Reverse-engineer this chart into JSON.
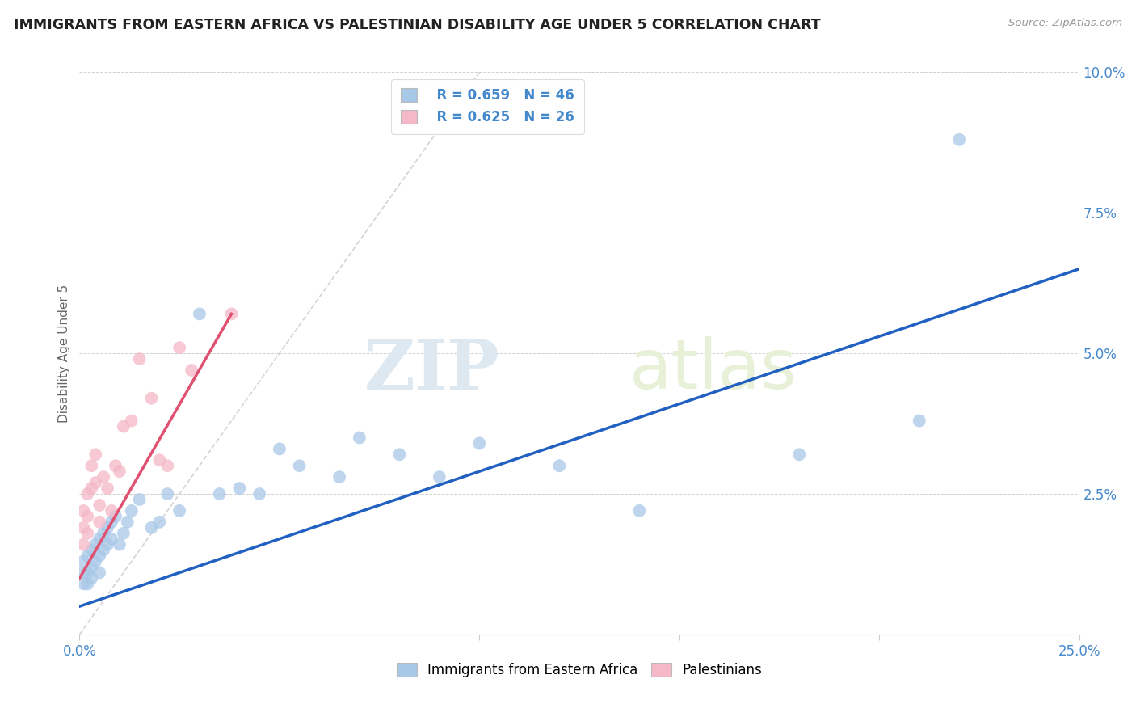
{
  "title": "IMMIGRANTS FROM EASTERN AFRICA VS PALESTINIAN DISABILITY AGE UNDER 5 CORRELATION CHART",
  "source": "Source: ZipAtlas.com",
  "ylabel": "Disability Age Under 5",
  "xlim": [
    0,
    0.25
  ],
  "ylim": [
    0,
    0.1
  ],
  "xticks": [
    0.0,
    0.05,
    0.1,
    0.15,
    0.2,
    0.25
  ],
  "yticks": [
    0.0,
    0.025,
    0.05,
    0.075,
    0.1
  ],
  "legend_r_blue": "0.659",
  "legend_n_blue": "46",
  "legend_r_pink": "0.625",
  "legend_n_pink": "26",
  "blue_color": "#a8c8e8",
  "pink_color": "#f4b8c8",
  "line_blue": "#2060c0",
  "line_pink": "#e05070",
  "diag_color": "#c8c8d0",
  "watermark_zip": "ZIP",
  "watermark_atlas": "atlas",
  "blue_scatter_x": [
    0.001,
    0.001,
    0.001,
    0.002,
    0.002,
    0.002,
    0.003,
    0.003,
    0.003,
    0.004,
    0.004,
    0.005,
    0.005,
    0.005,
    0.006,
    0.006,
    0.007,
    0.007,
    0.008,
    0.008,
    0.009,
    0.01,
    0.011,
    0.012,
    0.013,
    0.015,
    0.018,
    0.02,
    0.022,
    0.025,
    0.03,
    0.035,
    0.04,
    0.045,
    0.05,
    0.055,
    0.065,
    0.07,
    0.08,
    0.09,
    0.1,
    0.12,
    0.14,
    0.18,
    0.21,
    0.22
  ],
  "blue_scatter_y": [
    0.013,
    0.011,
    0.009,
    0.014,
    0.011,
    0.009,
    0.015,
    0.012,
    0.01,
    0.016,
    0.013,
    0.017,
    0.014,
    0.011,
    0.018,
    0.015,
    0.019,
    0.016,
    0.02,
    0.017,
    0.021,
    0.016,
    0.018,
    0.02,
    0.022,
    0.024,
    0.019,
    0.02,
    0.025,
    0.022,
    0.057,
    0.025,
    0.026,
    0.025,
    0.033,
    0.03,
    0.028,
    0.035,
    0.032,
    0.028,
    0.034,
    0.03,
    0.022,
    0.032,
    0.038,
    0.088
  ],
  "pink_scatter_x": [
    0.001,
    0.001,
    0.001,
    0.002,
    0.002,
    0.002,
    0.003,
    0.003,
    0.004,
    0.004,
    0.005,
    0.005,
    0.006,
    0.007,
    0.008,
    0.009,
    0.01,
    0.011,
    0.013,
    0.015,
    0.018,
    0.02,
    0.022,
    0.025,
    0.028,
    0.038
  ],
  "pink_scatter_y": [
    0.022,
    0.019,
    0.016,
    0.025,
    0.021,
    0.018,
    0.03,
    0.026,
    0.032,
    0.027,
    0.023,
    0.02,
    0.028,
    0.026,
    0.022,
    0.03,
    0.029,
    0.037,
    0.038,
    0.049,
    0.042,
    0.031,
    0.03,
    0.051,
    0.047,
    0.057
  ],
  "blue_line_x0": 0.0,
  "blue_line_y0": 0.005,
  "blue_line_x1": 0.25,
  "blue_line_y1": 0.065,
  "pink_line_x0": 0.0,
  "pink_line_y0": 0.01,
  "pink_line_x1": 0.038,
  "pink_line_y1": 0.057
}
